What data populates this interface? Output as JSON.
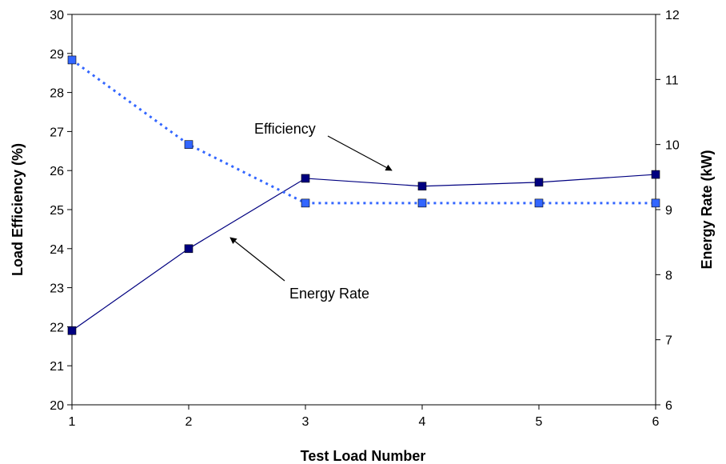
{
  "chart_data": {
    "type": "line",
    "title": "",
    "xlabel": "Test Load Number",
    "ylabel": "Load Efficiency (%)",
    "y2label": "Energy Rate (kW)",
    "x": [
      1,
      2,
      3,
      4,
      5,
      6
    ],
    "xlim": [
      1,
      6
    ],
    "ylim": [
      20,
      30
    ],
    "y2lim": [
      6,
      12
    ],
    "xticks": [
      "1",
      "2",
      "3",
      "4",
      "5",
      "6"
    ],
    "yticks": [
      "20",
      "21",
      "22",
      "23",
      "24",
      "25",
      "26",
      "27",
      "28",
      "29",
      "30"
    ],
    "y2ticks": [
      "6",
      "7",
      "8",
      "9",
      "10",
      "11",
      "12"
    ],
    "grid": false,
    "legend": "none",
    "series": [
      {
        "key": "efficiency",
        "axis": "left",
        "values": [
          21.9,
          24.0,
          25.8,
          25.6,
          25.7,
          25.9
        ],
        "color": "#000080",
        "line_style": "solid"
      },
      {
        "key": "energy_rate",
        "axis": "right",
        "values": [
          11.3,
          10.0,
          9.1,
          9.1,
          9.1,
          9.1
        ],
        "color": "#3366ff",
        "line_style": "dotted"
      }
    ],
    "annotations": [
      {
        "text": "Efficiency",
        "points_to_series": "efficiency"
      },
      {
        "text": "Energy Rate",
        "points_to_series": "energy_rate"
      }
    ]
  }
}
